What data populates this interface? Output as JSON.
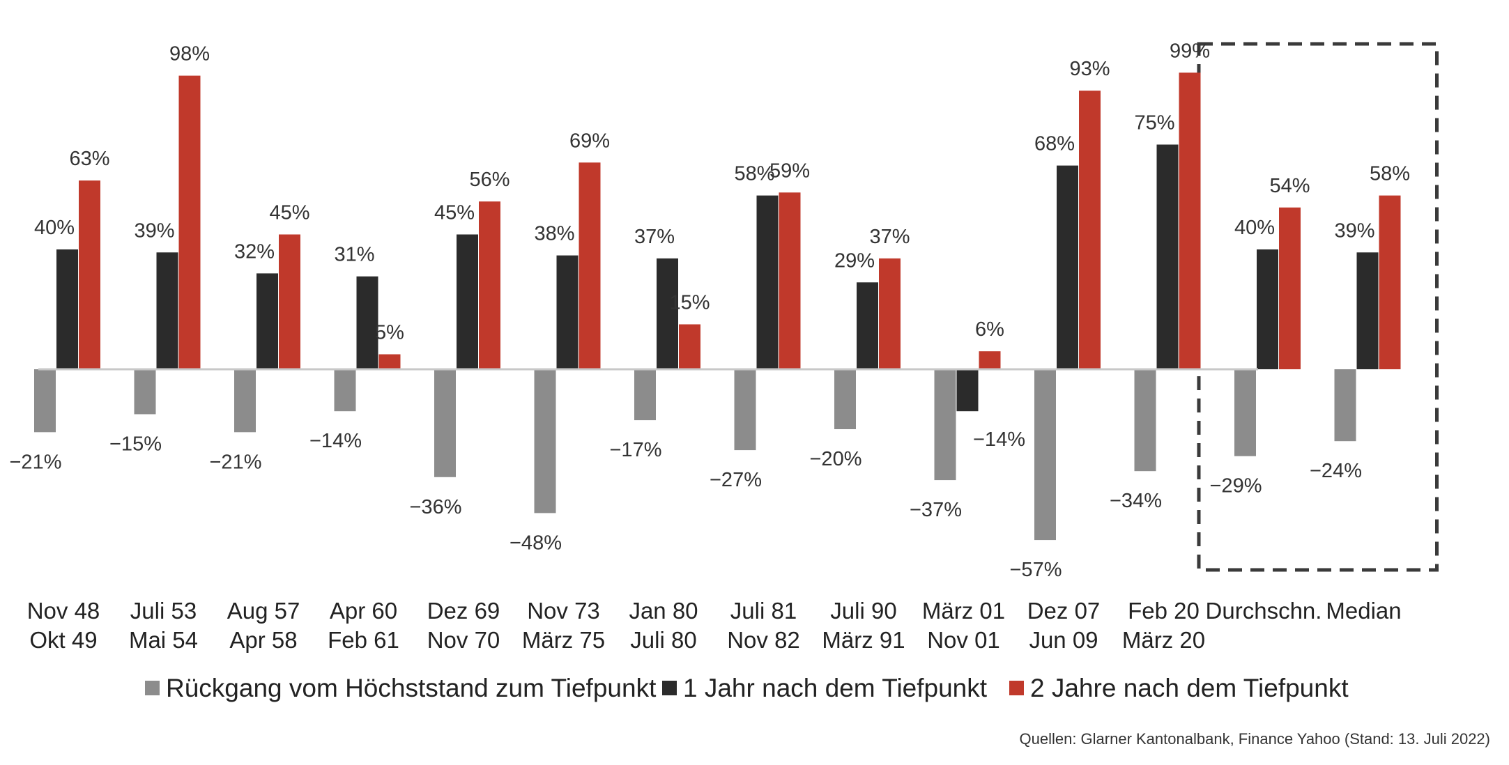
{
  "chart_data": {
    "type": "bar",
    "categories": [
      [
        "Nov 48",
        "Okt 49"
      ],
      [
        "Juli 53",
        "Mai 54"
      ],
      [
        "Aug 57",
        "Apr 58"
      ],
      [
        "Apr 60",
        "Feb 61"
      ],
      [
        "Dez 69",
        "Nov 70"
      ],
      [
        "Nov 73",
        "März 75"
      ],
      [
        "Jan 80",
        "Juli 80"
      ],
      [
        "Juli 81",
        "Nov 82"
      ],
      [
        "Juli 90",
        "März 91"
      ],
      [
        "März 01",
        "Nov 01"
      ],
      [
        "Dez 07",
        "Jun 09"
      ],
      [
        "Feb 20",
        "März 20"
      ],
      [
        "Durchschn.",
        ""
      ],
      [
        "Median",
        ""
      ]
    ],
    "series": [
      {
        "name": "Rückgang vom Höchststand zum Tiefpunkt",
        "color": "#8c8c8c",
        "values": [
          -21,
          -15,
          -21,
          -14,
          -36,
          -48,
          -17,
          -27,
          -20,
          -37,
          -57,
          -34,
          -29,
          -24
        ],
        "labels": [
          "−21%",
          "−15%",
          "−21%",
          "−14%",
          "−36%",
          "−48%",
          "−17%",
          "−27%",
          "−20%",
          "−37%",
          "−57%",
          "−34%",
          "−29%",
          "−24%"
        ]
      },
      {
        "name": "1 Jahr nach dem Tiefpunkt",
        "color": "#2b2b2b",
        "values": [
          40,
          39,
          32,
          31,
          45,
          38,
          37,
          58,
          29,
          -14,
          68,
          75,
          40,
          39
        ],
        "labels": [
          "40%",
          "39%",
          "32%",
          "31%",
          "45%",
          "38%",
          "37%",
          "58%",
          "29%",
          "−14%",
          "68%",
          "75%",
          "40%",
          "39%"
        ]
      },
      {
        "name": "2 Jahre nach dem Tiefpunkt",
        "color": "#c0392b",
        "values": [
          63,
          98,
          45,
          5,
          56,
          69,
          15,
          59,
          37,
          6,
          93,
          99,
          54,
          58
        ],
        "labels": [
          "63%",
          "98%",
          "45%",
          "5%",
          "56%",
          "69%",
          "15%",
          "59%",
          "37%",
          "6%",
          "93%",
          "99%",
          "54%",
          "58%"
        ]
      }
    ],
    "highlight_groups": [
      "Durchschn.",
      "Median"
    ],
    "legend_position": "bottom",
    "grid": false,
    "ylim": [
      -65,
      110
    ]
  },
  "source": "Quellen: Glarner Kantonalbank, Finance Yahoo (Stand: 13. Juli 2022)"
}
